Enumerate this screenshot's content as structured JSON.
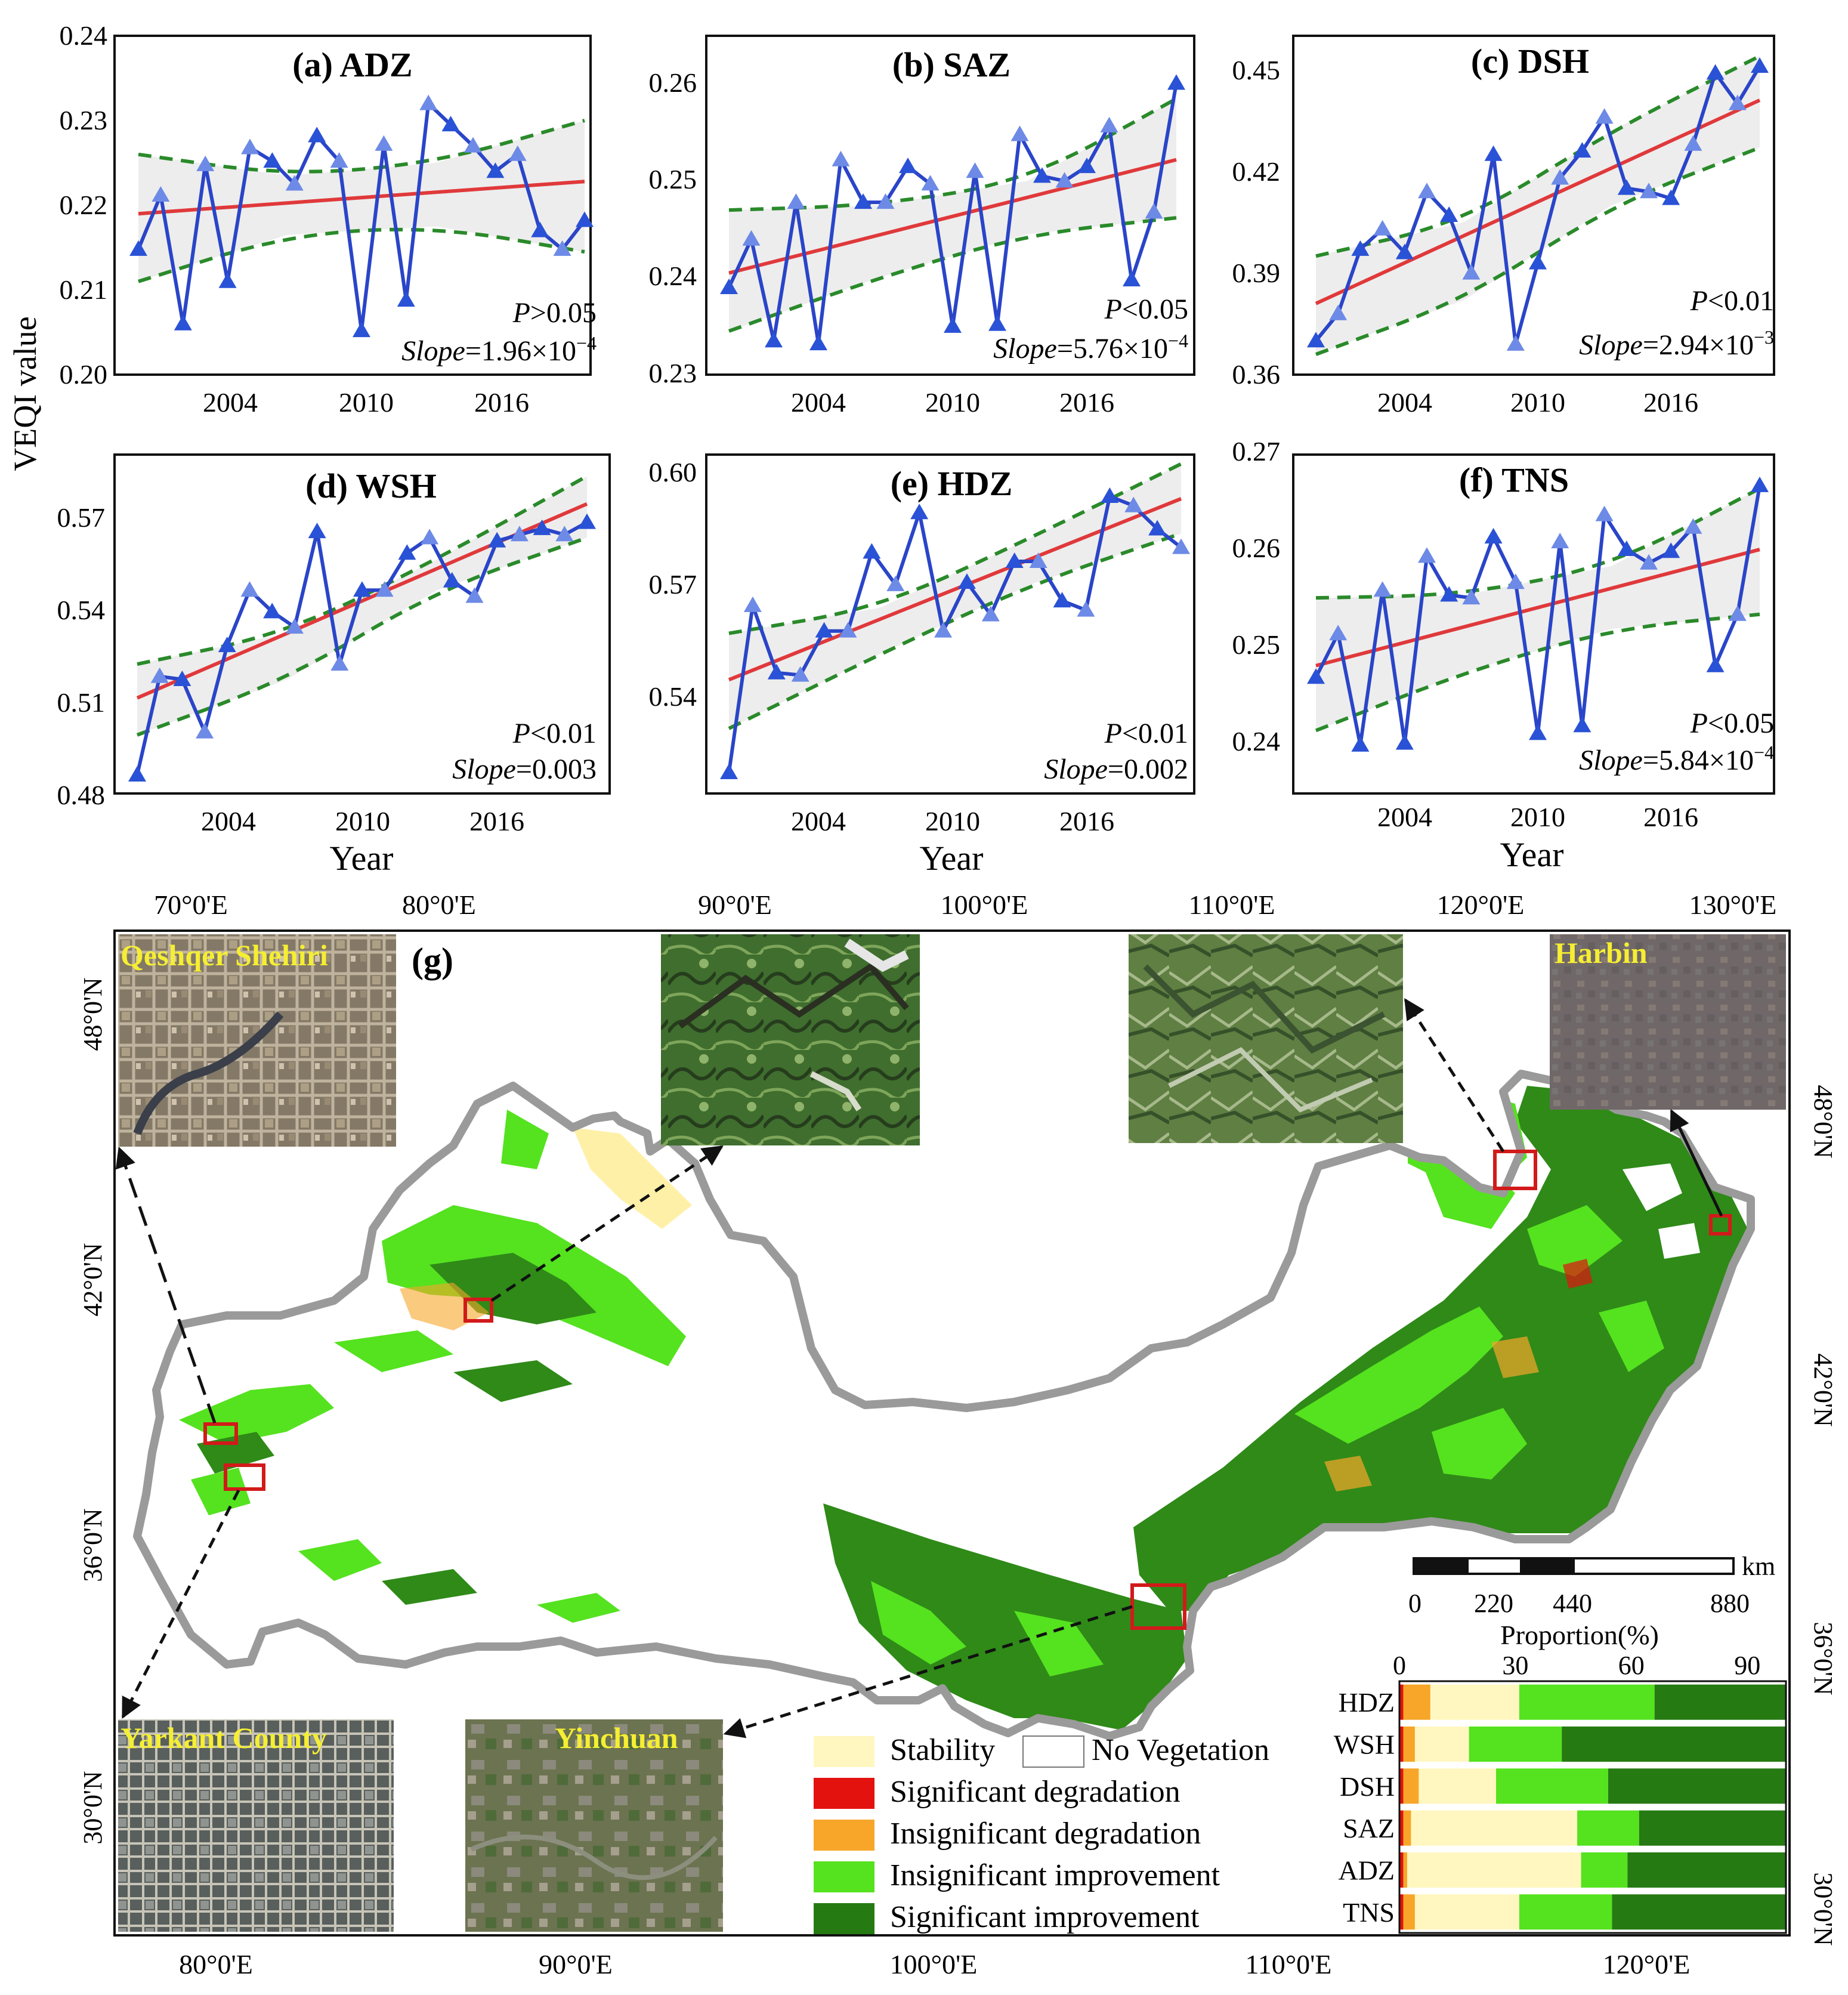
{
  "colors": {
    "series": "#2a45c8",
    "marker": "#2a52d6",
    "marker_light": "#6d8ae6",
    "trend": "#e0393b",
    "ci": "#2a8a2a",
    "band": "#ededed",
    "stability": "#fff7bf",
    "sig_deg": "#e3120f",
    "insig_deg": "#f7a629",
    "insig_imp": "#55e21f",
    "sig_imp": "#257a12",
    "outline": "#9a9a9a",
    "label_yellow": "#f5ee32",
    "inset_box": "#d21a1a"
  },
  "ylabel": "VEQI value",
  "xlabel": "Year",
  "chart_data": [
    {
      "type": "line",
      "title": "(a) ADZ",
      "x": [
        2000,
        2001,
        2002,
        2003,
        2004,
        2005,
        2006,
        2007,
        2008,
        2009,
        2010,
        2011,
        2012,
        2013,
        2014,
        2015,
        2016,
        2017,
        2018,
        2019,
        2020
      ],
      "values": [
        0.2148,
        0.2212,
        0.206,
        0.2248,
        0.211,
        0.2268,
        0.2252,
        0.2225,
        0.2282,
        0.2252,
        0.2052,
        0.2272,
        0.2088,
        0.232,
        0.2295,
        0.227,
        0.224,
        0.226,
        0.217,
        0.2148,
        0.2182
      ],
      "trend": [
        0.219,
        0.2228
      ],
      "ci_upper": [
        0.226,
        0.2235,
        0.225,
        0.23
      ],
      "ci_lower": [
        0.211,
        0.2165,
        0.2175,
        0.2145
      ],
      "ylim": [
        0.2,
        0.24
      ],
      "yticks": [
        "0.20",
        "0.21",
        "0.22",
        "0.23",
        "0.24"
      ],
      "xticks": [
        "2004",
        "2010",
        "2016"
      ],
      "xtick_values": [
        2004,
        2010,
        2016
      ],
      "p_sym": "P",
      "p_rel": ">0.05",
      "slope_label": "Slope",
      "slope_value": "=1.96×10",
      "slope_exp": "−4"
    },
    {
      "type": "line",
      "title": "(b) SAZ",
      "x": [
        2000,
        2001,
        2002,
        2003,
        2004,
        2005,
        2006,
        2007,
        2008,
        2009,
        2010,
        2011,
        2012,
        2013,
        2014,
        2015,
        2016,
        2017,
        2018,
        2019,
        2020
      ],
      "values": [
        0.239,
        0.244,
        0.2335,
        0.2478,
        0.2332,
        0.2522,
        0.2478,
        0.2478,
        0.2515,
        0.2497,
        0.235,
        0.251,
        0.2352,
        0.2548,
        0.2505,
        0.25,
        0.2515,
        0.2557,
        0.2398,
        0.2468,
        0.2601
      ],
      "trend": [
        0.2405,
        0.2522
      ],
      "ci_upper": [
        0.247,
        0.2475,
        0.25,
        0.2585
      ],
      "ci_lower": [
        0.2345,
        0.24,
        0.2445,
        0.2462
      ],
      "ylim": [
        0.23,
        0.265
      ],
      "yticks": [
        "0.23",
        "0.24",
        "0.25",
        "0.26"
      ],
      "xticks": [
        "2004",
        "2010",
        "2016"
      ],
      "xtick_values": [
        2004,
        2010,
        2016
      ],
      "p_sym": "P",
      "p_rel": "<0.05",
      "slope_label": "Slope",
      "slope_value": "=5.76×10",
      "slope_exp": "−4"
    },
    {
      "type": "line",
      "title": "(c) DSH",
      "x": [
        2000,
        2001,
        2002,
        2003,
        2004,
        2005,
        2006,
        2007,
        2008,
        2009,
        2010,
        2011,
        2012,
        2013,
        2014,
        2015,
        2016,
        2017,
        2018,
        2019,
        2020
      ],
      "values": [
        0.37,
        0.378,
        0.397,
        0.403,
        0.396,
        0.414,
        0.407,
        0.39,
        0.425,
        0.369,
        0.393,
        0.418,
        0.426,
        0.436,
        0.415,
        0.414,
        0.412,
        0.428,
        0.449,
        0.44,
        0.451
      ],
      "trend": [
        0.381,
        0.441
      ],
      "ci_upper": [
        0.395,
        0.405,
        0.432,
        0.454
      ],
      "ci_lower": [
        0.366,
        0.382,
        0.41,
        0.427
      ],
      "ylim": [
        0.36,
        0.46
      ],
      "yticks": [
        "0.36",
        "0.39",
        "0.42",
        "0.45"
      ],
      "xticks": [
        "2004",
        "2010",
        "2016"
      ],
      "xtick_values": [
        2004,
        2010,
        2016
      ],
      "p_sym": "P",
      "p_rel": "<0.01",
      "slope_label": "Slope",
      "slope_value": "=2.94×10",
      "slope_exp": "−3"
    },
    {
      "type": "line",
      "title": "(d) WSH",
      "x": [
        2000,
        2001,
        2002,
        2003,
        2004,
        2005,
        2006,
        2007,
        2008,
        2009,
        2010,
        2011,
        2012,
        2013,
        2014,
        2015,
        2016,
        2017,
        2018,
        2019,
        2020
      ],
      "values": [
        0.486,
        0.518,
        0.517,
        0.5,
        0.528,
        0.546,
        0.539,
        0.534,
        0.565,
        0.522,
        0.546,
        0.546,
        0.558,
        0.563,
        0.549,
        0.544,
        0.562,
        0.564,
        0.566,
        0.564,
        0.568
      ],
      "trend": [
        0.511,
        0.574
      ],
      "ci_upper": [
        0.522,
        0.532,
        0.556,
        0.583
      ],
      "ci_lower": [
        0.499,
        0.517,
        0.546,
        0.563
      ],
      "ylim": [
        0.48,
        0.59
      ],
      "yticks": [
        "0.48",
        "0.51",
        "0.54",
        "0.57"
      ],
      "xticks": [
        "2004",
        "2010",
        "2016"
      ],
      "xtick_values": [
        2004,
        2010,
        2016
      ],
      "p_sym": "P",
      "p_rel": "<0.01",
      "slope_label": "Slope",
      "slope_value": "=0.003",
      "slope_exp": ""
    },
    {
      "type": "line",
      "title": "(e) HDZ",
      "x": [
        2000,
        2001,
        2002,
        2003,
        2004,
        2005,
        2006,
        2007,
        2008,
        2009,
        2010,
        2011,
        2012,
        2013,
        2014,
        2015,
        2016,
        2017,
        2018,
        2019
      ],
      "values": [
        0.5345,
        0.5705,
        0.556,
        0.5555,
        0.565,
        0.565,
        0.582,
        0.575,
        0.5905,
        0.565,
        0.5755,
        0.5685,
        0.58,
        0.58,
        0.5715,
        0.5695,
        0.594,
        0.592,
        0.587,
        0.583
      ],
      "trend": [
        0.5545,
        0.5935
      ],
      "ci_upper": [
        0.5645,
        0.57,
        0.585,
        0.601
      ],
      "ci_lower": [
        0.544,
        0.56,
        0.575,
        0.586
      ],
      "ylim": [
        0.53,
        0.603
      ],
      "yticks": [
        "0.54",
        "0.57",
        "0.60"
      ],
      "xticks": [
        "2004",
        "2010",
        "2016"
      ],
      "xtick_values": [
        2004,
        2010,
        2016
      ],
      "p_sym": "P",
      "p_rel": "<0.01",
      "slope_label": "Slope",
      "slope_value": "=0.002",
      "slope_exp": ""
    },
    {
      "type": "line",
      "title": "(f) TNS",
      "x": [
        2000,
        2001,
        2002,
        2003,
        2004,
        2005,
        2006,
        2007,
        2008,
        2009,
        2010,
        2011,
        2012,
        2013,
        2014,
        2015,
        2016,
        2017,
        2018,
        2019,
        2020
      ],
      "values": [
        0.247,
        0.2515,
        0.24,
        0.256,
        0.2402,
        0.2595,
        0.2555,
        0.2552,
        0.2615,
        0.2568,
        0.2412,
        0.261,
        0.242,
        0.2638,
        0.2602,
        0.2588,
        0.26,
        0.2625,
        0.2482,
        0.2535,
        0.2668
      ],
      "trend": [
        0.2482,
        0.2602
      ],
      "ci_upper": [
        0.2552,
        0.2555,
        0.2585,
        0.2665
      ],
      "ci_lower": [
        0.2415,
        0.2475,
        0.252,
        0.2535
      ],
      "ylim": [
        0.235,
        0.27
      ],
      "yticks": [
        "0.24",
        "0.25",
        "0.26",
        "0.27"
      ],
      "xticks": [
        "2004",
        "2010",
        "2016"
      ],
      "xtick_values": [
        2004,
        2010,
        2016
      ],
      "p_sym": "P",
      "p_rel": "<0.05",
      "slope_label": "Slope",
      "slope_value": "=5.84×10",
      "slope_exp": "−4"
    },
    {
      "type": "bar",
      "title": "Proportion(%)",
      "orientation": "horizontal",
      "stacked": true,
      "categories": [
        "HDZ",
        "WSH",
        "DSH",
        "SAZ",
        "ADZ",
        "TNS"
      ],
      "xlim": [
        0,
        100
      ],
      "xticks": [
        "0",
        "30",
        "60",
        "90"
      ],
      "xtick_values": [
        0,
        30,
        60,
        90
      ],
      "series": [
        {
          "name": "Significant degradation",
          "color_key": "sig_deg",
          "values": [
            1,
            1,
            1,
            1,
            1,
            1
          ]
        },
        {
          "name": "Insignificant degradation",
          "color_key": "insig_deg",
          "values": [
            7,
            3,
            4,
            2,
            1,
            3
          ]
        },
        {
          "name": "Stability",
          "color_key": "stability",
          "values": [
            23,
            14,
            20,
            43,
            45,
            27
          ]
        },
        {
          "name": "Insignificant improvement",
          "color_key": "insig_imp",
          "values": [
            35,
            24,
            29,
            16,
            12,
            24
          ]
        },
        {
          "name": "Significant improvement",
          "color_key": "sig_imp",
          "values": [
            34,
            58,
            46,
            38,
            41,
            45
          ]
        }
      ]
    }
  ],
  "map": {
    "label": "(g)",
    "top_lon_labels": [
      "70°0'E",
      "80°0'E",
      "90°0'E",
      "100°0'E",
      "110°0'E",
      "120°0'E",
      "130°0'E"
    ],
    "bottom_lon_labels": [
      "80°0'E",
      "90°0'E",
      "100°0'E",
      "110°0'E",
      "120°0'E"
    ],
    "left_lat_labels": [
      "48°0'N",
      "42°0'N",
      "36°0'N",
      "30°0'N"
    ],
    "right_lat_labels": [
      "48°0'N",
      "42°0'N",
      "36°0'N",
      "30°0'N"
    ],
    "insets": [
      "Qeshqer Shehiri",
      "Harbin",
      "Yarkant County",
      "Yinchuan"
    ],
    "scalebar": {
      "ticks": [
        "0",
        "220",
        "440",
        "880"
      ],
      "unit": "km"
    },
    "legend": [
      "Stability",
      "No Vegetation",
      "Significant degradation",
      "Insignificant degradation",
      "Insignificant improvement",
      "Significant improvement"
    ]
  }
}
